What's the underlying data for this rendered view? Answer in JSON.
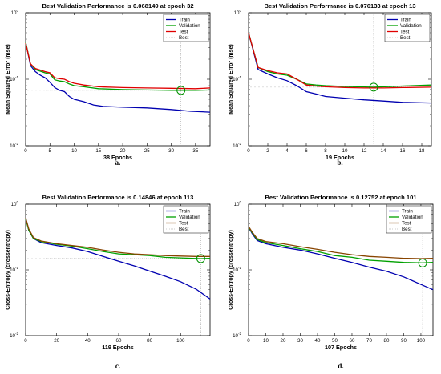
{
  "figure": {
    "panel_letters": [
      "a.",
      "b.",
      "c.",
      "d."
    ]
  },
  "colors": {
    "Train": "#0000b0",
    "Validation": "#00a000",
    "Test": "#e00000",
    "Best": "#999999",
    "test_c": "#884400",
    "marker": "#009000"
  },
  "chart_data": [
    {
      "type": "line",
      "title": "Best Validation Performance is 0.068149 at epoch 32",
      "xlabel": "38 Epochs",
      "ylabel": "Mean Squared Error  (mse)",
      "yscale": "log",
      "xlim": [
        0,
        38
      ],
      "ylim": [
        0.01,
        1
      ],
      "xticks": [
        0,
        5,
        10,
        15,
        20,
        25,
        30,
        35
      ],
      "yticks": [
        0.01,
        0.1,
        1
      ],
      "ytick_labels": [
        "10",
        "10",
        "10"
      ],
      "ytick_exponents": [
        "-2",
        "-1",
        "0"
      ],
      "legend": [
        "Train",
        "Validation",
        "Test",
        "Best"
      ],
      "legend_position": "top-right",
      "best": {
        "epoch": 32,
        "value": 0.068149
      },
      "series": [
        {
          "name": "Train",
          "x": [
            0,
            1,
            2,
            3,
            4,
            5,
            6,
            7,
            8,
            9,
            10,
            12,
            14,
            16,
            20,
            25,
            30,
            34,
            38
          ],
          "y": [
            0.36,
            0.16,
            0.13,
            0.115,
            0.105,
            0.09,
            0.075,
            0.068,
            0.065,
            0.055,
            0.05,
            0.046,
            0.041,
            0.039,
            0.038,
            0.037,
            0.035,
            0.033,
            0.032
          ]
        },
        {
          "name": "Validation",
          "x": [
            0,
            1,
            2,
            4,
            5,
            6,
            7,
            8,
            9,
            10,
            12,
            15,
            20,
            25,
            30,
            32,
            35,
            38
          ],
          "y": [
            0.36,
            0.17,
            0.14,
            0.125,
            0.12,
            0.098,
            0.094,
            0.092,
            0.085,
            0.08,
            0.077,
            0.072,
            0.07,
            0.069,
            0.068,
            0.068,
            0.068,
            0.069
          ]
        },
        {
          "name": "Test",
          "x": [
            0,
            1,
            2,
            4,
            5,
            6,
            7,
            8,
            9,
            10,
            12,
            15,
            20,
            25,
            30,
            35,
            38
          ],
          "y": [
            0.35,
            0.17,
            0.145,
            0.13,
            0.125,
            0.105,
            0.102,
            0.1,
            0.092,
            0.087,
            0.082,
            0.077,
            0.075,
            0.074,
            0.073,
            0.072,
            0.074
          ]
        }
      ]
    },
    {
      "type": "line",
      "title": "Best Validation Performance is 0.076133 at epoch 13",
      "xlabel": "19 Epochs",
      "ylabel": "Mean Squared Error  (mse)",
      "yscale": "log",
      "xlim": [
        0,
        19
      ],
      "ylim": [
        0.01,
        1
      ],
      "xticks": [
        0,
        2,
        4,
        6,
        8,
        10,
        12,
        14,
        16,
        18
      ],
      "yticks": [
        0.01,
        0.1,
        1
      ],
      "ytick_labels": [
        "10",
        "10",
        "10"
      ],
      "ytick_exponents": [
        "-2",
        "-1",
        "0"
      ],
      "legend": [
        "Train",
        "Validation",
        "Test",
        "Best"
      ],
      "legend_position": "top-right",
      "best": {
        "epoch": 13,
        "value": 0.076133
      },
      "series": [
        {
          "name": "Train",
          "x": [
            0,
            1,
            2,
            3,
            4,
            5,
            6,
            7,
            8,
            10,
            12,
            14,
            16,
            19
          ],
          "y": [
            0.5,
            0.14,
            0.12,
            0.105,
            0.095,
            0.08,
            0.065,
            0.06,
            0.055,
            0.052,
            0.049,
            0.047,
            0.045,
            0.044
          ]
        },
        {
          "name": "Validation",
          "x": [
            0,
            1,
            2,
            3,
            4,
            5,
            6,
            7,
            8,
            10,
            13,
            15,
            17,
            19
          ],
          "y": [
            0.5,
            0.15,
            0.13,
            0.12,
            0.115,
            0.1,
            0.085,
            0.082,
            0.08,
            0.078,
            0.076,
            0.078,
            0.08,
            0.082
          ]
        },
        {
          "name": "Test",
          "x": [
            0,
            1,
            2,
            3,
            4,
            5,
            6,
            7,
            8,
            10,
            12,
            14,
            16,
            19
          ],
          "y": [
            0.5,
            0.15,
            0.135,
            0.125,
            0.12,
            0.1,
            0.082,
            0.079,
            0.077,
            0.075,
            0.074,
            0.074,
            0.075,
            0.076
          ]
        }
      ]
    },
    {
      "type": "line",
      "title": "Best Validation Performance is 0.14846 at epoch 113",
      "xlabel": "119 Epochs",
      "ylabel": "Cross-Entropy  (crossentropy)",
      "yscale": "log",
      "xlim": [
        0,
        119
      ],
      "ylim": [
        0.01,
        1
      ],
      "xticks": [
        0,
        20,
        40,
        60,
        80,
        100
      ],
      "yticks": [
        0.01,
        0.1,
        1
      ],
      "ytick_labels": [
        "10",
        "10",
        "10"
      ],
      "ytick_exponents": [
        "-2",
        "-1",
        "0"
      ],
      "legend": [
        "Train",
        "Validation",
        "Test",
        "Best"
      ],
      "legend_position": "top-right",
      "best": {
        "epoch": 113,
        "value": 0.14846
      },
      "series": [
        {
          "name": "Train",
          "x": [
            0,
            2,
            5,
            10,
            20,
            30,
            40,
            50,
            60,
            70,
            80,
            90,
            100,
            110,
            119
          ],
          "y": [
            0.62,
            0.4,
            0.3,
            0.26,
            0.235,
            0.215,
            0.19,
            0.16,
            0.135,
            0.115,
            0.096,
            0.08,
            0.066,
            0.051,
            0.036
          ]
        },
        {
          "name": "Validation",
          "x": [
            0,
            2,
            5,
            10,
            20,
            30,
            40,
            50,
            60,
            70,
            80,
            90,
            100,
            113,
            119
          ],
          "y": [
            0.6,
            0.4,
            0.3,
            0.27,
            0.245,
            0.23,
            0.21,
            0.19,
            0.175,
            0.17,
            0.165,
            0.155,
            0.152,
            0.148,
            0.15
          ]
        },
        {
          "name": "Test",
          "x": [
            0,
            2,
            5,
            10,
            20,
            30,
            40,
            50,
            60,
            70,
            80,
            90,
            100,
            110,
            119
          ],
          "y": [
            0.62,
            0.42,
            0.31,
            0.275,
            0.25,
            0.235,
            0.22,
            0.2,
            0.185,
            0.175,
            0.17,
            0.165,
            0.162,
            0.16,
            0.16
          ]
        }
      ]
    },
    {
      "type": "line",
      "title": "Best Validation Performance is 0.12752 at epoch 101",
      "xlabel": "107 Epochs",
      "ylabel": "Cross-Entropy  (crossentropy)",
      "yscale": "log",
      "xlim": [
        0,
        107
      ],
      "ylim": [
        0.01,
        1
      ],
      "xticks": [
        0,
        10,
        20,
        30,
        40,
        50,
        60,
        70,
        80,
        90,
        100
      ],
      "yticks": [
        0.01,
        0.1,
        1
      ],
      "ytick_labels": [
        "10",
        "10",
        "10"
      ],
      "ytick_exponents": [
        "-2",
        "-1",
        "0"
      ],
      "legend": [
        "Train",
        "Validation",
        "Test",
        "Best"
      ],
      "legend_position": "top-right",
      "best": {
        "epoch": 101,
        "value": 0.12752
      },
      "series": [
        {
          "name": "Train",
          "x": [
            0,
            2,
            5,
            10,
            20,
            30,
            40,
            50,
            60,
            70,
            80,
            90,
            100,
            107
          ],
          "y": [
            0.45,
            0.36,
            0.28,
            0.25,
            0.22,
            0.2,
            0.175,
            0.15,
            0.13,
            0.11,
            0.095,
            0.078,
            0.06,
            0.05
          ]
        },
        {
          "name": "Validation",
          "x": [
            0,
            2,
            5,
            10,
            20,
            30,
            40,
            50,
            60,
            70,
            80,
            90,
            101,
            107
          ],
          "y": [
            0.45,
            0.37,
            0.29,
            0.26,
            0.235,
            0.21,
            0.19,
            0.165,
            0.155,
            0.14,
            0.135,
            0.13,
            0.1275,
            0.13
          ]
        },
        {
          "name": "Test",
          "x": [
            0,
            2,
            5,
            10,
            20,
            30,
            40,
            50,
            60,
            70,
            80,
            90,
            100,
            107
          ],
          "y": [
            0.46,
            0.38,
            0.3,
            0.27,
            0.25,
            0.225,
            0.205,
            0.185,
            0.17,
            0.16,
            0.155,
            0.15,
            0.148,
            0.15
          ]
        }
      ]
    }
  ]
}
